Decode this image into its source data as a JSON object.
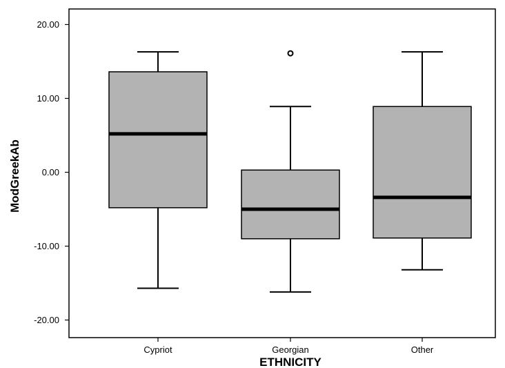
{
  "chart_data": {
    "type": "boxplot",
    "xlabel": "ETHNICITY",
    "ylabel": "ModGreekAb",
    "ylim": [
      -22.5,
      22.5
    ],
    "yticks": [
      20,
      10,
      0,
      -10,
      -20
    ],
    "ytick_labels": [
      "20.00",
      "10.00",
      "0.00",
      "-10.00",
      "-20.00"
    ],
    "categories": [
      "Cypriot",
      "Georgian",
      "Other"
    ],
    "boxes": [
      {
        "category": "Cypriot",
        "min": -15.7,
        "q1": -4.8,
        "median": 5.2,
        "q3": 13.6,
        "max": 16.3,
        "outliers": []
      },
      {
        "category": "Georgian",
        "min": -16.2,
        "q1": -9.0,
        "median": -5.0,
        "q3": 0.3,
        "max": 8.9,
        "outliers": [
          16.1
        ]
      },
      {
        "category": "Other",
        "min": -13.2,
        "q1": -8.9,
        "median": -3.4,
        "q3": 8.9,
        "max": 16.3,
        "outliers": []
      }
    ],
    "colors": {
      "box_fill": "#b3b3b3",
      "stroke": "#000000"
    },
    "grid": false
  }
}
